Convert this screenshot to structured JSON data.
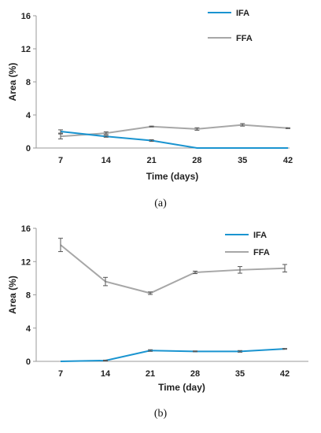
{
  "colors": {
    "IFA": "#1a94d0",
    "FFA": "#a7a7a7",
    "axis": "#9a9a9a",
    "errorbar": "#555555"
  },
  "chart_data": [
    {
      "type": "line",
      "caption": "(a)",
      "xlabel": "Time (days)",
      "ylabel": "Area (%)",
      "categories": [
        "7",
        "14",
        "21",
        "28",
        "35",
        "42"
      ],
      "yticks": [
        "0",
        "4",
        "8",
        "12",
        "16"
      ],
      "ylim": [
        0,
        16
      ],
      "grid": false,
      "legend_position": "top-right",
      "series": [
        {
          "name": "IFA",
          "values": [
            2.0,
            1.4,
            0.9,
            0.0,
            0.0,
            0.0
          ],
          "errors": [
            0.2,
            0.1,
            0.1,
            0,
            0,
            0
          ]
        },
        {
          "name": "FFA",
          "values": [
            1.4,
            1.8,
            2.6,
            2.3,
            2.8,
            2.4
          ],
          "errors": [
            0.3,
            0.15,
            0.05,
            0.15,
            0.15,
            0.05
          ]
        }
      ]
    },
    {
      "type": "line",
      "caption": "(b)",
      "xlabel": "Time (day)",
      "ylabel": "Area (%)",
      "categories": [
        "7",
        "14",
        "21",
        "28",
        "35",
        "42"
      ],
      "yticks": [
        "0",
        "4",
        "8",
        "12",
        "16"
      ],
      "ylim": [
        0,
        16
      ],
      "grid": false,
      "legend_position": "top-right",
      "series": [
        {
          "name": "IFA",
          "values": [
            0.0,
            0.1,
            1.3,
            1.2,
            1.2,
            1.5
          ],
          "errors": [
            0,
            0.05,
            0.1,
            0.05,
            0.1,
            0.05
          ]
        },
        {
          "name": "FFA",
          "values": [
            14.0,
            9.6,
            8.2,
            10.7,
            11.0,
            11.2
          ],
          "errors": [
            0.8,
            0.5,
            0.15,
            0.15,
            0.4,
            0.45
          ]
        }
      ]
    }
  ]
}
